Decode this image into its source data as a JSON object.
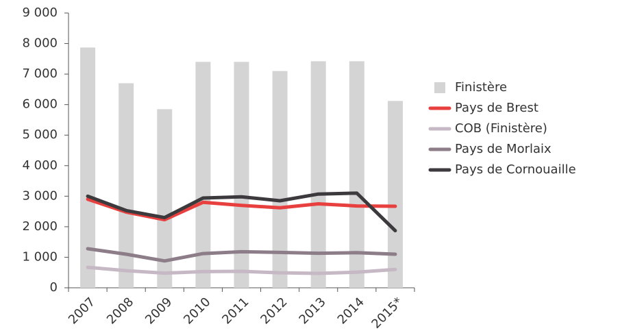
{
  "chart_data": {
    "type": "bar",
    "categories": [
      "2007",
      "2008",
      "2009",
      "2010",
      "2011",
      "2012",
      "2013",
      "2014",
      "2015*"
    ],
    "series": [
      {
        "name": "Finistère",
        "type": "bar",
        "color": "#d4d4d4",
        "values": [
          7870,
          6700,
          5850,
          7400,
          7400,
          7100,
          7420,
          7420,
          6120
        ]
      },
      {
        "name": "Pays de Brest",
        "type": "line",
        "color": "#e8403e",
        "values": [
          2900,
          2480,
          2230,
          2800,
          2700,
          2620,
          2750,
          2680,
          2670
        ]
      },
      {
        "name": "COB (Finistère)",
        "type": "line",
        "color": "#c6b8c4",
        "values": [
          670,
          560,
          480,
          530,
          540,
          490,
          470,
          510,
          600
        ]
      },
      {
        "name": "Pays de Morlaix",
        "type": "line",
        "color": "#8c7d89",
        "values": [
          1280,
          1100,
          880,
          1120,
          1180,
          1160,
          1130,
          1150,
          1100
        ]
      },
      {
        "name": "Pays de Cornouaille",
        "type": "line",
        "color": "#3d3a3e",
        "values": [
          3000,
          2530,
          2300,
          2940,
          2980,
          2850,
          3070,
          3100,
          1870
        ]
      }
    ],
    "ylim": [
      0,
      9000
    ],
    "yticks": [
      0,
      {
        "value": 1000,
        "label": "1 000"
      },
      {
        "value": 2000,
        "label": "2 000"
      },
      {
        "value": 3000,
        "label": "3 000"
      },
      {
        "value": 4000,
        "label": "4 000"
      },
      {
        "value": 5000,
        "label": "5 000"
      },
      {
        "value": 6000,
        "label": "6 000"
      },
      {
        "value": 7000,
        "label": "7 000"
      },
      {
        "value": 8000,
        "label": "8 000"
      },
      {
        "value": 9000,
        "label": "9 000"
      }
    ],
    "legend": "right"
  }
}
